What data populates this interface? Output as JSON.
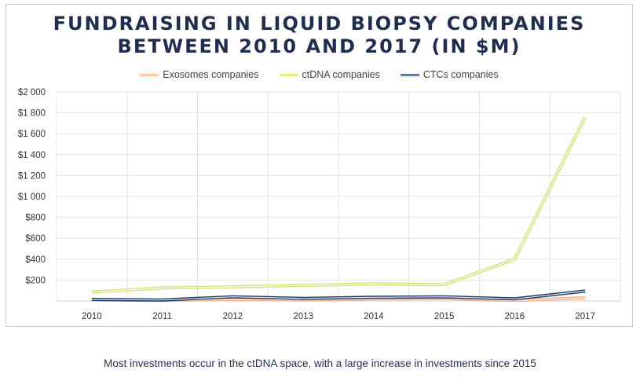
{
  "chart_data": {
    "type": "line",
    "title_lines": [
      "FUNDRAISING IN LIQUID BIOPSY COMPANIES",
      "BETWEEN 2010 AND 2017 (IN $M)"
    ],
    "x": [
      "2010",
      "2011",
      "2012",
      "2013",
      "2014",
      "2015",
      "2016",
      "2017"
    ],
    "ylim": [
      0,
      2000
    ],
    "yticks": [
      0,
      200,
      400,
      600,
      800,
      1000,
      1200,
      1400,
      1600,
      1800,
      2000
    ],
    "ytick_labels": [
      "",
      "$200",
      "$400",
      "$600",
      "$800",
      "$1 000",
      "$1 200",
      "$1 400",
      "$1 600",
      "$1 800",
      "$2 000"
    ],
    "grid": true,
    "legend_position": "top",
    "series": [
      {
        "name": "Exosomes companies",
        "color": "#f4b183",
        "values": [
          10,
          5,
          15,
          10,
          20,
          25,
          5,
          30
        ]
      },
      {
        "name": "ctDNA companies",
        "color": "#d4e27a",
        "values": [
          85,
          125,
          135,
          150,
          165,
          155,
          400,
          1760
        ]
      },
      {
        "name": "CTCs companies",
        "color": "#203864",
        "values": [
          15,
          10,
          40,
          25,
          35,
          40,
          20,
          95
        ]
      }
    ]
  },
  "caption": "Most investments occur in the ctDNA space, with a large increase in investments since 2015"
}
